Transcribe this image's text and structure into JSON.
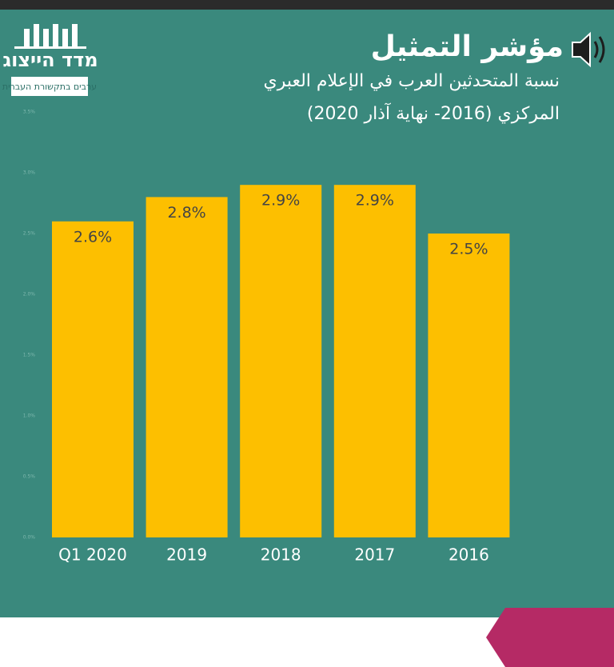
{
  "logo": {
    "title": "מדד הייצוג",
    "tagline": "ערבים בתקשורת העברית"
  },
  "chart_data": {
    "type": "bar",
    "title": "مؤشر التمثيل",
    "subtitle": [
      "نسبة المتحدثين العرب في الإعلام العبري",
      "المركزي (2016- نهاية آذار 2020)"
    ],
    "categories": [
      "Q1 2020",
      "2019",
      "2018",
      "2017",
      "2016"
    ],
    "values": [
      2.6,
      2.8,
      2.9,
      2.9,
      2.5
    ],
    "value_labels": [
      "2.6%",
      "2.8%",
      "2.9%",
      "2.9%",
      "2.5%"
    ],
    "color": "#fdbf00",
    "ylim": [
      0,
      3.5
    ],
    "yticks": [
      {
        "value": 0,
        "label": "0.0%"
      },
      {
        "value": 0.5,
        "label": "0.5%"
      },
      {
        "value": 1,
        "label": "1.0%"
      },
      {
        "value": 1.5,
        "label": "1.5%"
      },
      {
        "value": 2,
        "label": "2.0%"
      },
      {
        "value": 2.5,
        "label": "2.5%"
      },
      {
        "value": 3,
        "label": "3.0%"
      },
      {
        "value": 3.5,
        "label": "3.5%"
      }
    ],
    "grid": false
  }
}
